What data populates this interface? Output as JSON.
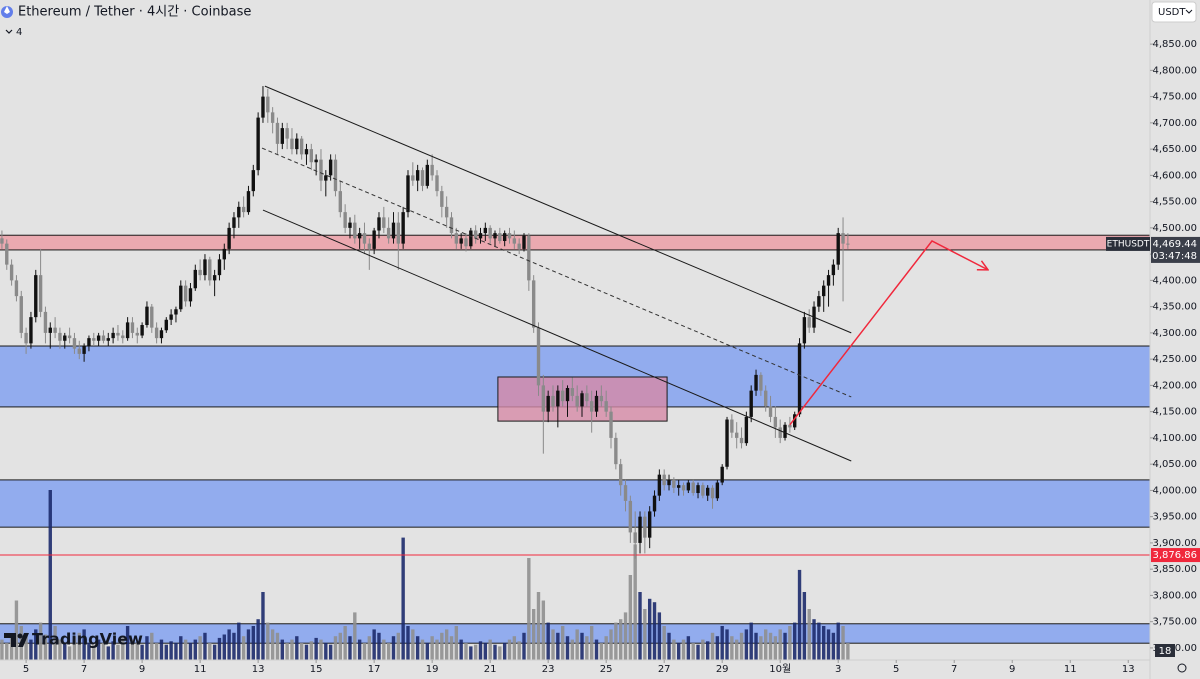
{
  "chart_data": {
    "type": "candlestick",
    "title": "Ethereum / Tether · 4시간 · Coinbase",
    "indicator_count": "4",
    "currency": "USDT",
    "watermark": "TradingView",
    "badge": "18",
    "up_color": "#111111",
    "down_color": "#8a8a8a",
    "volume_up_color": "#1c2a6b",
    "volume_down_color": "#8f8f8f",
    "xlim": [
      -0.4,
      237.5
    ],
    "ylim": [
      3677,
      4934
    ],
    "grid": false,
    "xticks": [
      5,
      {
        "value": 17,
        "label": "7"
      },
      {
        "value": 29,
        "label": "9"
      },
      {
        "value": 41,
        "label": "11"
      },
      {
        "value": 53,
        "label": "13"
      },
      {
        "value": 65,
        "label": "15"
      },
      {
        "value": 77,
        "label": "17"
      },
      {
        "value": 89,
        "label": "19"
      },
      {
        "value": 101,
        "label": "21"
      },
      {
        "value": 113,
        "label": "23"
      },
      {
        "value": 125,
        "label": "25"
      },
      {
        "value": 137,
        "label": "27"
      },
      {
        "value": 149,
        "label": "29"
      },
      {
        "value": 161,
        "label": "10월"
      },
      {
        "value": 173,
        "label": "3"
      },
      {
        "value": 185,
        "label": "5"
      },
      {
        "value": 197,
        "label": "7"
      },
      {
        "value": 209,
        "label": "9"
      },
      {
        "value": 221,
        "label": "11"
      },
      {
        "value": 233,
        "label": "13"
      }
    ],
    "yticks": [
      {
        "value": 3700,
        "label": "3,700.00"
      },
      {
        "value": 3750,
        "label": "3,750.00"
      },
      {
        "value": 3800,
        "label": "3,800.00"
      },
      {
        "value": 3850,
        "label": "3,850.00"
      },
      {
        "value": 3900,
        "label": "3,900.00"
      },
      {
        "value": 3950,
        "label": "3,950.00"
      },
      {
        "value": 4000,
        "label": "4,000.00"
      },
      {
        "value": 4050,
        "label": "4,050.00"
      },
      {
        "value": 4100,
        "label": "4,100.00"
      },
      {
        "value": 4150,
        "label": "4,150.00"
      },
      {
        "value": 4200,
        "label": "4,200.00"
      },
      {
        "value": 4250,
        "label": "4,250.00"
      },
      {
        "value": 4300,
        "label": "4,300.00"
      },
      {
        "value": 4350,
        "label": "4,350.00"
      },
      {
        "value": 4400,
        "label": "4,400.00"
      },
      {
        "value": 4450,
        "label": "4,450.00"
      },
      {
        "value": 4500,
        "label": "4,500.00"
      },
      {
        "value": 4550,
        "label": "4,550.00"
      },
      {
        "value": 4600,
        "label": "4,600.00"
      },
      {
        "value": 4650,
        "label": "4,650.00"
      },
      {
        "value": 4700,
        "label": "4,700.00"
      },
      {
        "value": 4750,
        "label": "4,750.00"
      },
      {
        "value": 4800,
        "label": "4,800.00"
      },
      {
        "value": 4850,
        "label": "4,850.00"
      }
    ],
    "candles": [
      [
        4480,
        4495,
        4460,
        4470
      ],
      [
        4470,
        4478,
        4420,
        4430
      ],
      [
        4430,
        4440,
        4390,
        4400
      ],
      [
        4400,
        4410,
        4360,
        4370
      ],
      [
        4370,
        4380,
        4290,
        4300
      ],
      [
        4300,
        4310,
        4260,
        4280
      ],
      [
        4280,
        4340,
        4270,
        4330
      ],
      [
        4330,
        4420,
        4320,
        4410
      ],
      [
        4410,
        4460,
        4330,
        4340
      ],
      [
        4340,
        4350,
        4280,
        4300
      ],
      [
        4300,
        4320,
        4270,
        4310
      ],
      [
        4310,
        4330,
        4290,
        4300
      ],
      [
        4300,
        4310,
        4270,
        4285
      ],
      [
        4285,
        4300,
        4270,
        4295
      ],
      [
        4295,
        4310,
        4280,
        4290
      ],
      [
        4290,
        4300,
        4260,
        4270
      ],
      [
        4270,
        4285,
        4250,
        4260
      ],
      [
        4260,
        4280,
        4245,
        4275
      ],
      [
        4275,
        4295,
        4265,
        4290
      ],
      [
        4290,
        4300,
        4275,
        4285
      ],
      [
        4285,
        4300,
        4275,
        4295
      ],
      [
        4295,
        4305,
        4280,
        4285
      ],
      [
        4285,
        4300,
        4275,
        4290
      ],
      [
        4290,
        4310,
        4280,
        4300
      ],
      [
        4300,
        4315,
        4285,
        4295
      ],
      [
        4295,
        4305,
        4280,
        4290
      ],
      [
        4290,
        4330,
        4285,
        4320
      ],
      [
        4320,
        4330,
        4290,
        4300
      ],
      [
        4300,
        4310,
        4280,
        4295
      ],
      [
        4295,
        4320,
        4290,
        4315
      ],
      [
        4315,
        4360,
        4310,
        4350
      ],
      [
        4350,
        4355,
        4300,
        4310
      ],
      [
        4310,
        4320,
        4280,
        4290
      ],
      [
        4290,
        4310,
        4280,
        4305
      ],
      [
        4305,
        4330,
        4300,
        4325
      ],
      [
        4325,
        4345,
        4315,
        4335
      ],
      [
        4335,
        4350,
        4320,
        4345
      ],
      [
        4345,
        4400,
        4340,
        4390
      ],
      [
        4390,
        4400,
        4350,
        4360
      ],
      [
        4360,
        4395,
        4350,
        4385
      ],
      [
        4385,
        4430,
        4380,
        4420
      ],
      [
        4420,
        4440,
        4400,
        4410
      ],
      [
        4410,
        4450,
        4400,
        4440
      ],
      [
        4440,
        4445,
        4390,
        4400
      ],
      [
        4400,
        4420,
        4370,
        4410
      ],
      [
        4410,
        4450,
        4400,
        4440
      ],
      [
        4440,
        4470,
        4420,
        4460
      ],
      [
        4460,
        4510,
        4450,
        4500
      ],
      [
        4500,
        4530,
        4480,
        4520
      ],
      [
        4520,
        4550,
        4500,
        4540
      ],
      [
        4540,
        4560,
        4520,
        4530
      ],
      [
        4530,
        4580,
        4525,
        4570
      ],
      [
        4570,
        4620,
        4560,
        4610
      ],
      [
        4610,
        4720,
        4600,
        4710
      ],
      [
        4710,
        4770,
        4700,
        4750
      ],
      [
        4750,
        4765,
        4700,
        4720
      ],
      [
        4720,
        4730,
        4680,
        4700
      ],
      [
        4700,
        4710,
        4640,
        4660
      ],
      [
        4660,
        4700,
        4650,
        4690
      ],
      [
        4690,
        4700,
        4650,
        4670
      ],
      [
        4670,
        4690,
        4640,
        4650
      ],
      [
        4650,
        4680,
        4640,
        4670
      ],
      [
        4670,
        4675,
        4630,
        4640
      ],
      [
        4640,
        4660,
        4620,
        4650
      ],
      [
        4650,
        4660,
        4610,
        4625
      ],
      [
        4625,
        4640,
        4600,
        4630
      ],
      [
        4630,
        4650,
        4570,
        4590
      ],
      [
        4590,
        4610,
        4560,
        4600
      ],
      [
        4600,
        4640,
        4590,
        4630
      ],
      [
        4630,
        4640,
        4560,
        4570
      ],
      [
        4570,
        4590,
        4520,
        4530
      ],
      [
        4530,
        4545,
        4490,
        4500
      ],
      [
        4500,
        4520,
        4480,
        4510
      ],
      [
        4510,
        4525,
        4470,
        4480
      ],
      [
        4480,
        4500,
        4460,
        4490
      ],
      [
        4490,
        4510,
        4450,
        4470
      ],
      [
        4470,
        4480,
        4420,
        4460
      ],
      [
        4460,
        4500,
        4450,
        4495
      ],
      [
        4495,
        4530,
        4480,
        4520
      ],
      [
        4520,
        4540,
        4490,
        4500
      ],
      [
        4500,
        4520,
        4470,
        4480
      ],
      [
        4480,
        4530,
        4470,
        4510
      ],
      [
        4510,
        4530,
        4420,
        4470
      ],
      [
        4470,
        4540,
        4460,
        4530
      ],
      [
        4530,
        4610,
        4520,
        4600
      ],
      [
        4600,
        4625,
        4580,
        4590
      ],
      [
        4590,
        4620,
        4570,
        4610
      ],
      [
        4610,
        4615,
        4570,
        4580
      ],
      [
        4580,
        4630,
        4575,
        4620
      ],
      [
        4620,
        4640,
        4590,
        4600
      ],
      [
        4600,
        4610,
        4560,
        4570
      ],
      [
        4570,
        4580,
        4520,
        4540
      ],
      [
        4540,
        4560,
        4500,
        4520
      ],
      [
        4520,
        4530,
        4480,
        4490
      ],
      [
        4490,
        4500,
        4460,
        4470
      ],
      [
        4470,
        4490,
        4460,
        4480
      ],
      [
        4480,
        4490,
        4455,
        4465
      ],
      [
        4465,
        4500,
        4460,
        4495
      ],
      [
        4495,
        4505,
        4470,
        4480
      ],
      [
        4480,
        4500,
        4470,
        4490
      ],
      [
        4490,
        4510,
        4475,
        4500
      ],
      [
        4500,
        4505,
        4470,
        4480
      ],
      [
        4480,
        4495,
        4465,
        4490
      ],
      [
        4490,
        4500,
        4470,
        4475
      ],
      [
        4475,
        4495,
        4465,
        4490
      ],
      [
        4490,
        4500,
        4470,
        4480
      ],
      [
        4480,
        4495,
        4460,
        4470
      ],
      [
        4470,
        4480,
        4450,
        4460
      ],
      [
        4460,
        4490,
        4455,
        4485
      ],
      [
        4485,
        4490,
        4380,
        4400
      ],
      [
        4400,
        4410,
        4300,
        4310
      ],
      [
        4310,
        4320,
        4180,
        4200
      ],
      [
        4200,
        4220,
        4070,
        4150
      ],
      [
        4150,
        4190,
        4130,
        4180
      ],
      [
        4180,
        4200,
        4150,
        4160
      ],
      [
        4160,
        4200,
        4120,
        4190
      ],
      [
        4190,
        4210,
        4160,
        4170
      ],
      [
        4170,
        4200,
        4140,
        4195
      ],
      [
        4195,
        4215,
        4170,
        4180
      ],
      [
        4180,
        4200,
        4150,
        4160
      ],
      [
        4160,
        4190,
        4140,
        4185
      ],
      [
        4185,
        4200,
        4160,
        4170
      ],
      [
        4170,
        4190,
        4110,
        4150
      ],
      [
        4150,
        4190,
        4140,
        4180
      ],
      [
        4180,
        4200,
        4160,
        4170
      ],
      [
        4170,
        4190,
        4140,
        4150
      ],
      [
        4150,
        4160,
        4080,
        4100
      ],
      [
        4100,
        4110,
        4040,
        4050
      ],
      [
        4050,
        4060,
        3990,
        4010
      ],
      [
        4010,
        4020,
        3960,
        3980
      ],
      [
        3980,
        3990,
        3900,
        3920
      ],
      [
        3920,
        3960,
        3870,
        3900
      ],
      [
        3900,
        3960,
        3880,
        3950
      ],
      [
        3950,
        3960,
        3880,
        3910
      ],
      [
        3910,
        3970,
        3890,
        3960
      ],
      [
        3960,
        4000,
        3950,
        3990
      ],
      [
        3990,
        4040,
        3980,
        4030
      ],
      [
        4030,
        4040,
        4000,
        4010
      ],
      [
        4010,
        4030,
        4000,
        4020
      ],
      [
        4020,
        4025,
        3995,
        4005
      ],
      [
        4005,
        4020,
        3990,
        4010
      ],
      [
        4010,
        4015,
        3990,
        4000
      ],
      [
        4000,
        4020,
        3995,
        4015
      ],
      [
        4015,
        4020,
        3990,
        3995
      ],
      [
        3995,
        4015,
        3985,
        4010
      ],
      [
        4010,
        4015,
        3985,
        3990
      ],
      [
        3990,
        4010,
        3980,
        4005
      ],
      [
        4005,
        4010,
        3965,
        3985
      ],
      [
        3985,
        4020,
        3980,
        4015
      ],
      [
        4015,
        4050,
        4010,
        4045
      ],
      [
        4045,
        4140,
        4040,
        4135
      ],
      [
        4135,
        4145,
        4100,
        4110
      ],
      [
        4110,
        4130,
        4080,
        4100
      ],
      [
        4100,
        4120,
        4080,
        4090
      ],
      [
        4090,
        4150,
        4085,
        4140
      ],
      [
        4140,
        4200,
        4130,
        4190
      ],
      [
        4190,
        4230,
        4180,
        4220
      ],
      [
        4220,
        4225,
        4180,
        4190
      ],
      [
        4190,
        4200,
        4150,
        4160
      ],
      [
        4160,
        4180,
        4130,
        4140
      ],
      [
        4140,
        4160,
        4100,
        4120
      ],
      [
        4120,
        4135,
        4090,
        4100
      ],
      [
        4100,
        4130,
        4095,
        4125
      ],
      [
        4125,
        4140,
        4110,
        4120
      ],
      [
        4120,
        4150,
        4115,
        4145
      ],
      [
        4145,
        4290,
        4140,
        4280
      ],
      [
        4280,
        4340,
        4270,
        4330
      ],
      [
        4330,
        4345,
        4300,
        4310
      ],
      [
        4310,
        4360,
        4300,
        4350
      ],
      [
        4350,
        4380,
        4340,
        4370
      ],
      [
        4370,
        4400,
        4340,
        4390
      ],
      [
        4390,
        4420,
        4350,
        4410
      ],
      [
        4410,
        4440,
        4390,
        4430
      ],
      [
        4430,
        4500,
        4420,
        4490
      ],
      [
        4490,
        4520,
        4360,
        4470
      ],
      [
        4470,
        4490,
        4460,
        4469.44
      ]
    ],
    "volume": [
      12,
      10,
      14,
      35,
      20,
      16,
      12,
      18,
      22,
      15,
      100,
      20,
      12,
      10,
      8,
      14,
      16,
      18,
      10,
      9,
      12,
      10,
      8,
      11,
      9,
      14,
      20,
      12,
      10,
      9,
      14,
      16,
      10,
      12,
      9,
      11,
      10,
      14,
      12,
      10,
      12,
      14,
      16,
      10,
      9,
      13,
      15,
      18,
      16,
      22,
      14,
      18,
      20,
      24,
      40,
      22,
      18,
      16,
      12,
      10,
      12,
      14,
      10,
      9,
      11,
      13,
      12,
      10,
      9,
      14,
      16,
      20,
      14,
      28,
      12,
      10,
      14,
      18,
      16,
      12,
      10,
      14,
      16,
      72,
      20,
      18,
      14,
      12,
      10,
      14,
      12,
      16,
      18,
      14,
      20,
      12,
      10,
      8,
      9,
      11,
      10,
      12,
      9,
      8,
      10,
      12,
      14,
      11,
      16,
      60,
      30,
      40,
      35,
      22,
      18,
      16,
      20,
      14,
      12,
      18,
      16,
      14,
      20,
      12,
      10,
      14,
      18,
      22,
      24,
      28,
      50,
      68,
      40,
      30,
      36,
      34,
      28,
      20,
      16,
      12,
      10,
      12,
      14,
      10,
      9,
      12,
      11,
      16,
      14,
      20,
      18,
      14,
      12,
      16,
      18,
      22,
      16,
      14,
      18,
      16,
      14,
      18,
      16,
      20,
      22,
      53,
      40,
      30,
      24,
      22,
      20,
      18,
      16,
      22,
      20,
      10
    ],
    "zones": [
      {
        "low": 4458,
        "high": 4486,
        "color": "#ec9aa3"
      },
      {
        "low": 4159,
        "high": 4275,
        "color": "#7d9ef0"
      },
      {
        "low": 3930,
        "high": 4020,
        "color": "#7d9ef0"
      },
      {
        "low": 3709,
        "high": 3746,
        "color": "#7d9ef0"
      },
      {
        "low": 4132,
        "high": 4216,
        "color": "#d68aa6",
        "x": [
          102.6,
          137.6
        ]
      }
    ],
    "lines": [
      {
        "points": [
          [
            54.4,
            4770
          ],
          [
            175.7,
            4300
          ]
        ],
        "color": "#1a1a1a",
        "dashed": false,
        "arrow": false
      },
      {
        "points": [
          [
            53.8,
            4652
          ],
          [
            175.7,
            4178
          ]
        ],
        "color": "#333333",
        "dashed": true,
        "arrow": false
      },
      {
        "points": [
          [
            54,
            4534
          ],
          [
            175.7,
            4056
          ]
        ],
        "color": "#1a1a1a",
        "dashed": false,
        "arrow": false
      },
      {
        "points": [
          [
            163,
            4125
          ],
          [
            192.4,
            4475
          ],
          [
            204,
            4420
          ]
        ],
        "color": "#f0283c",
        "dashed": false,
        "arrow": true
      }
    ],
    "hline": {
      "value": 3876.86,
      "label": "3,876.86",
      "color": "#f0283c"
    },
    "price_label": {
      "symbol": "ETHUSDT",
      "value": 4469.44,
      "label": "4,469.44",
      "countdown": "03:47:48"
    }
  }
}
